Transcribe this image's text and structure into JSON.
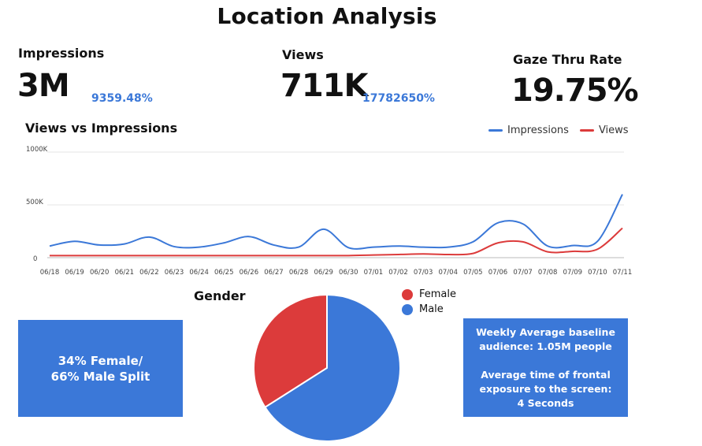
{
  "title": "Location Analysis",
  "kpis": {
    "impressions": {
      "label": "Impressions",
      "value": "3M",
      "change": "9359.48%"
    },
    "views": {
      "label": "Views",
      "value": "711K",
      "change": "17782650%"
    },
    "gaze": {
      "label": "Gaze Thru Rate",
      "value": "19.75%"
    }
  },
  "colors": {
    "impressions": "#3b78d8",
    "views": "#dc3b3b",
    "female": "#dc3b3b",
    "male": "#3b78d8"
  },
  "chart_data": [
    {
      "type": "line",
      "title": "Views vs Impressions",
      "legend_position": "top-right",
      "grid": true,
      "ylim": [
        0,
        1000000
      ],
      "yticks": [
        0,
        500000,
        1000000
      ],
      "ytick_labels": [
        "0",
        "500K",
        "1000K"
      ],
      "categories": [
        "06/18",
        "06/19",
        "06/20",
        "06/21",
        "06/22",
        "06/23",
        "06/24",
        "06/25",
        "06/26",
        "06/27",
        "06/28",
        "06/29",
        "06/30",
        "07/01",
        "07/02",
        "07/03",
        "07/04",
        "07/05",
        "07/06",
        "07/07",
        "07/08",
        "07/09",
        "07/10",
        "07/11"
      ],
      "series": [
        {
          "name": "Impressions",
          "values": [
            110000,
            155000,
            120000,
            130000,
            195000,
            105000,
            100000,
            140000,
            200000,
            120000,
            100000,
            270000,
            95000,
            100000,
            110000,
            100000,
            100000,
            150000,
            330000,
            320000,
            110000,
            115000,
            155000,
            600000
          ]
        },
        {
          "name": "Views",
          "values": [
            20000,
            20000,
            20000,
            20000,
            20000,
            20000,
            20000,
            20000,
            20000,
            20000,
            20000,
            20000,
            20000,
            25000,
            30000,
            35000,
            30000,
            40000,
            140000,
            150000,
            55000,
            60000,
            80000,
            280000
          ]
        }
      ]
    },
    {
      "type": "pie",
      "title": "Gender",
      "categories": [
        "Female",
        "Male"
      ],
      "values": [
        34,
        66
      ],
      "legend_position": "right"
    }
  ],
  "boxes": {
    "split_line1": "34% Female/",
    "split_line2": "66% Male Split",
    "baseline_line1": "Weekly Average baseline",
    "baseline_line2": "audience: 1.05M people",
    "exposure_line1": "Average time of frontal",
    "exposure_line2": "exposure to the screen:",
    "exposure_line3": "4 Seconds"
  }
}
